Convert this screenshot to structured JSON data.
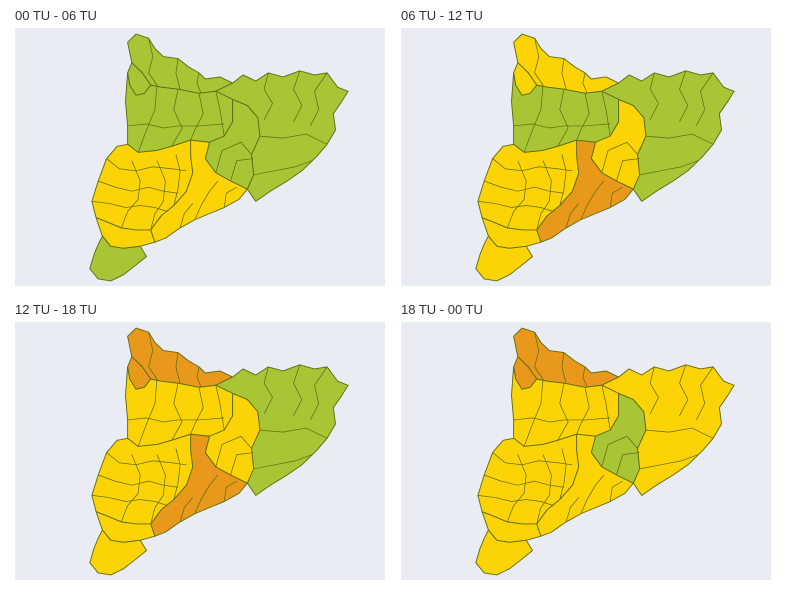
{
  "palette": {
    "green": "#a8c536",
    "yellow": "#fcd304",
    "orange": "#e8991c",
    "background": "#e9edf3"
  },
  "maps": [
    {
      "title": "00 TU - 06 TU",
      "levels": {
        "pyrenees": "green",
        "west_pyrenees": "green",
        "northwest": "green",
        "central": "green",
        "east": "green",
        "coast_central": "yellow",
        "southwest": "yellow",
        "south_central": "yellow",
        "delta": "green"
      }
    },
    {
      "title": "06 TU - 12 TU",
      "levels": {
        "pyrenees": "yellow",
        "west_pyrenees": "yellow",
        "northwest": "green",
        "central": "yellow",
        "east": "green",
        "coast_central": "orange",
        "southwest": "yellow",
        "south_central": "yellow",
        "delta": "yellow"
      }
    },
    {
      "title": "12 TU - 18 TU",
      "levels": {
        "pyrenees": "orange",
        "west_pyrenees": "orange",
        "northwest": "yellow",
        "central": "yellow",
        "east": "green",
        "coast_central": "orange",
        "southwest": "yellow",
        "south_central": "yellow",
        "delta": "yellow"
      }
    },
    {
      "title": "18 TU - 00 TU",
      "levels": {
        "pyrenees": "orange",
        "west_pyrenees": "orange",
        "northwest": "yellow",
        "central": "green",
        "east": "yellow",
        "coast_central": "yellow",
        "southwest": "yellow",
        "south_central": "yellow",
        "delta": "yellow"
      }
    }
  ]
}
